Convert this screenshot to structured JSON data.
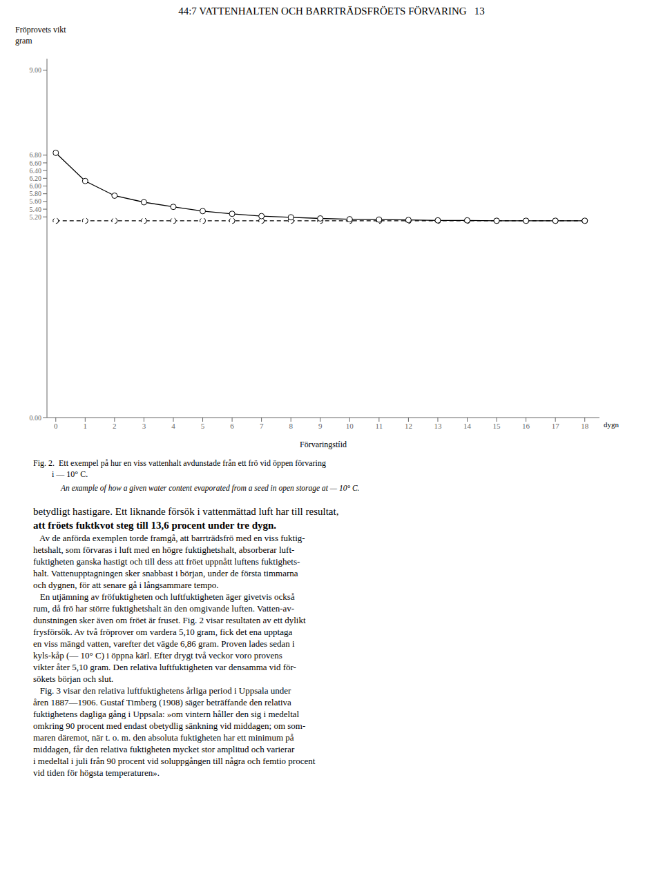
{
  "chart_data": {
    "type": "line",
    "title": "44:7 VATTENHALTEN OCH BARRTRÄDSFRÖETS FÖRVARING   13",
    "y_label": "Fröprovets vikt",
    "y_unit": "gram",
    "x_label": "Förvaringstíid",
    "x_unit": "dygn",
    "caption": [
      "Fig. 2.  Ett exempel på hur en viss vattenhalt avdunstade från ett frö vid öppen förvaring\n         i — 10° C.",
      "An example of how a given water content evaporated from a seed in open storage at — 10° C."
    ],
    "body_text": [
      "betydligt hastigare. Ett liknande försök i vattenmättad luft har till resultat,",
      "att fröets fuktkvot steg till 13,6 procent under tre dygn.",
      "   Av de anförda exemplen torde framgå, att barrträdsfrö med en viss fuktig-",
      "hetshalt, som förvaras i luft med en högre fuktighetshalt, absorberar luft-",
      "fuktigheten ganska hastigt och till dess att fröet uppnått luftens fuktighets-",
      "halt. Vattenupptagningen sker snabbast i början, under de första timmarna",
      "och dygnen, för att senare gå i långsammare tempo.",
      "   En utjämning av fröfuktigheten och luftfuktigheten äger givetvis också",
      "rum, då frö har större fuktighetshalt än den omgivande luften. Vatten-av-",
      "dunstningen sker även om fröet är fruset. Fig. 2 visar resultaten av ett dylikt",
      "frysförsök. Av två fröprover om vardera 5,10 gram, fick det ena upptaga",
      "en viss mängd vatten, varefter det vägde 6,86 gram. Proven lades sedan i",
      "kyls-kåp (— 10° C) i öppna kärl. Efter drygt två veckor voro provens",
      "vikter åter 5,10 gram. Den relativa luftfuktigheten var densamma vid för-",
      "sökets början och slut.",
      "   Fig. 3 visar den relativa luftfuktighetens årliga period i Uppsala under",
      "åren 1887—1906. Gustaf Timberg (1908) säger beträffande den relativa",
      "fuktighetens dagliga gång i Uppsala: »om vintern håller den sig i medeltal",
      "omkring 90 procent med endast obetydlig sänkning vid middagen; om som-",
      "maren däremot, när t. o. m. den absoluta fuktigheten har ett minimum på",
      "middagen, får den relativa fuktigheten mycket stor amplitud och varierar",
      "i medeltal i juli från 90 procent vid soluppgången till några och femtio procent",
      "vid tiden för högsta temperaturen»."
    ],
    "x": [
      0,
      1,
      2,
      3,
      4,
      5,
      6,
      7,
      8,
      9,
      10,
      11,
      12,
      13,
      14,
      15,
      16,
      17,
      18
    ],
    "series": [
      {
        "values": [
          5.1,
          5.1,
          5.1,
          5.1,
          5.1,
          5.1,
          5.1,
          5.1,
          5.1,
          5.1,
          5.1,
          5.1,
          5.1,
          5.1,
          5.1,
          5.1,
          5.1,
          5.1,
          5.1
        ],
        "color": "#000000",
        "line_style": "dashed",
        "marker": "o"
      },
      {
        "values": [
          6.86,
          6.13,
          5.75,
          5.58,
          5.46,
          5.35,
          5.28,
          5.22,
          5.19,
          5.16,
          5.14,
          5.13,
          5.12,
          5.11,
          5.11,
          5.1,
          5.1,
          5.1,
          5.1
        ],
        "color": "#000000",
        "line_style": "solid",
        "marker": "o"
      }
    ],
    "xlim": [
      -0.3,
      18.5
    ],
    "ylim": [
      0.0,
      9.3
    ],
    "xticks": [
      0,
      1,
      2,
      3,
      4,
      5,
      6,
      7,
      8,
      9,
      10,
      11,
      12,
      13,
      14,
      15,
      16,
      17,
      18
    ],
    "yticks": [
      {
        "value": 0.0,
        "label": "0.00"
      },
      {
        "value": 5.2,
        "label": "5.20"
      },
      {
        "value": 5.4,
        "label": "5.40"
      },
      {
        "value": 5.6,
        "label": "5.60"
      },
      {
        "value": 5.8,
        "label": "5.80"
      },
      {
        "value": 6.0,
        "label": "6.00"
      },
      {
        "value": 6.2,
        "label": "6.20"
      },
      {
        "value": 6.4,
        "label": "6.40"
      },
      {
        "value": 6.6,
        "label": "6.60"
      },
      {
        "value": 6.8,
        "label": "6.80"
      },
      {
        "value": 9.0,
        "label": "9.00"
      }
    ],
    "grid": false
  }
}
